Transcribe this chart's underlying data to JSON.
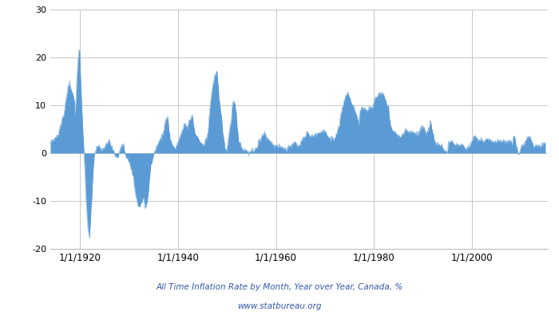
{
  "title_line1": "All Time Inflation Rate by Month, Year over Year, Canada, %",
  "title_line2": "www.statbureau.org",
  "title_color": "#3355aa",
  "fill_color": "#5b9bd5",
  "line_color": "#5b9bd5",
  "background_color": "#ffffff",
  "grid_color": "#c8c8c8",
  "ylim": [
    -20,
    30
  ],
  "yticks": [
    -20,
    -10,
    0,
    10,
    20,
    30
  ],
  "x_start_year": 1914,
  "x_end_year": 2015,
  "xtick_years": [
    1920,
    1940,
    1960,
    1980,
    2000
  ],
  "key_points": [
    [
      1914,
      1,
      2.0
    ],
    [
      1914,
      6,
      2.5
    ],
    [
      1914,
      12,
      3.0
    ],
    [
      1915,
      6,
      3.5
    ],
    [
      1915,
      12,
      5.0
    ],
    [
      1916,
      6,
      7.0
    ],
    [
      1916,
      12,
      9.0
    ],
    [
      1917,
      3,
      11.0
    ],
    [
      1917,
      6,
      13.0
    ],
    [
      1917,
      9,
      14.0
    ],
    [
      1917,
      12,
      15.0
    ],
    [
      1918,
      3,
      13.5
    ],
    [
      1918,
      6,
      13.0
    ],
    [
      1918,
      9,
      12.0
    ],
    [
      1918,
      12,
      11.0
    ],
    [
      1919,
      1,
      8.0
    ],
    [
      1919,
      3,
      10.0
    ],
    [
      1919,
      6,
      16.0
    ],
    [
      1919,
      9,
      20.0
    ],
    [
      1919,
      11,
      21.5
    ],
    [
      1920,
      1,
      21.0
    ],
    [
      1920,
      3,
      16.0
    ],
    [
      1920,
      6,
      10.0
    ],
    [
      1920,
      9,
      4.0
    ],
    [
      1920,
      12,
      -1.0
    ],
    [
      1921,
      3,
      -7.0
    ],
    [
      1921,
      6,
      -12.0
    ],
    [
      1921,
      9,
      -16.0
    ],
    [
      1921,
      12,
      -17.5
    ],
    [
      1922,
      1,
      -17.8
    ],
    [
      1922,
      3,
      -15.0
    ],
    [
      1922,
      6,
      -10.0
    ],
    [
      1922,
      9,
      -5.0
    ],
    [
      1922,
      12,
      -1.0
    ],
    [
      1923,
      3,
      0.0
    ],
    [
      1923,
      6,
      1.0
    ],
    [
      1923,
      12,
      1.5
    ],
    [
      1924,
      6,
      0.5
    ],
    [
      1924,
      12,
      1.0
    ],
    [
      1925,
      6,
      2.0
    ],
    [
      1925,
      12,
      2.5
    ],
    [
      1926,
      6,
      1.5
    ],
    [
      1926,
      12,
      0.5
    ],
    [
      1927,
      6,
      -1.0
    ],
    [
      1927,
      12,
      -0.5
    ],
    [
      1928,
      6,
      1.5
    ],
    [
      1928,
      12,
      2.0
    ],
    [
      1929,
      3,
      0.5
    ],
    [
      1929,
      6,
      -0.5
    ],
    [
      1929,
      12,
      -1.5
    ],
    [
      1930,
      3,
      -2.0
    ],
    [
      1930,
      6,
      -3.5
    ],
    [
      1930,
      12,
      -5.0
    ],
    [
      1931,
      3,
      -7.0
    ],
    [
      1931,
      6,
      -9.0
    ],
    [
      1931,
      12,
      -11.0
    ],
    [
      1932,
      3,
      -11.5
    ],
    [
      1932,
      6,
      -10.5
    ],
    [
      1932,
      9,
      -10.0
    ],
    [
      1932,
      12,
      -9.5
    ],
    [
      1933,
      1,
      -9.0
    ],
    [
      1933,
      3,
      -10.0
    ],
    [
      1933,
      5,
      -11.5
    ],
    [
      1933,
      9,
      -10.5
    ],
    [
      1933,
      12,
      -9.0
    ],
    [
      1934,
      3,
      -6.0
    ],
    [
      1934,
      6,
      -3.0
    ],
    [
      1934,
      12,
      -1.0
    ],
    [
      1935,
      3,
      0.0
    ],
    [
      1935,
      6,
      1.0
    ],
    [
      1935,
      9,
      1.5
    ],
    [
      1935,
      12,
      2.0
    ],
    [
      1936,
      3,
      2.5
    ],
    [
      1936,
      6,
      3.0
    ],
    [
      1936,
      9,
      3.5
    ],
    [
      1936,
      12,
      4.0
    ],
    [
      1937,
      3,
      5.0
    ],
    [
      1937,
      6,
      6.5
    ],
    [
      1937,
      9,
      7.0
    ],
    [
      1937,
      12,
      7.5
    ],
    [
      1938,
      3,
      5.0
    ],
    [
      1938,
      6,
      3.0
    ],
    [
      1938,
      12,
      1.5
    ],
    [
      1939,
      6,
      1.0
    ],
    [
      1939,
      12,
      2.0
    ],
    [
      1940,
      6,
      3.5
    ],
    [
      1940,
      12,
      5.0
    ],
    [
      1941,
      6,
      6.0
    ],
    [
      1941,
      12,
      5.5
    ],
    [
      1942,
      6,
      7.0
    ],
    [
      1942,
      12,
      8.0
    ],
    [
      1943,
      6,
      4.5
    ],
    [
      1943,
      12,
      3.5
    ],
    [
      1944,
      6,
      2.5
    ],
    [
      1944,
      12,
      2.0
    ],
    [
      1945,
      3,
      1.5
    ],
    [
      1945,
      6,
      2.0
    ],
    [
      1945,
      9,
      3.0
    ],
    [
      1945,
      12,
      3.5
    ],
    [
      1946,
      3,
      5.0
    ],
    [
      1946,
      6,
      8.0
    ],
    [
      1946,
      9,
      11.0
    ],
    [
      1946,
      12,
      13.0
    ],
    [
      1947,
      3,
      14.0
    ],
    [
      1947,
      6,
      16.0
    ],
    [
      1947,
      9,
      16.5
    ],
    [
      1947,
      11,
      17.0
    ],
    [
      1948,
      1,
      17.0
    ],
    [
      1948,
      3,
      15.0
    ],
    [
      1948,
      6,
      11.0
    ],
    [
      1948,
      9,
      9.0
    ],
    [
      1948,
      12,
      7.0
    ],
    [
      1949,
      3,
      4.5
    ],
    [
      1949,
      6,
      2.5
    ],
    [
      1949,
      9,
      1.0
    ],
    [
      1949,
      12,
      0.5
    ],
    [
      1950,
      3,
      2.0
    ],
    [
      1950,
      6,
      4.0
    ],
    [
      1950,
      9,
      6.0
    ],
    [
      1950,
      12,
      7.0
    ],
    [
      1951,
      1,
      9.0
    ],
    [
      1951,
      3,
      10.5
    ],
    [
      1951,
      6,
      11.0
    ],
    [
      1951,
      9,
      10.0
    ],
    [
      1951,
      12,
      8.0
    ],
    [
      1952,
      3,
      5.0
    ],
    [
      1952,
      6,
      2.5
    ],
    [
      1952,
      12,
      1.5
    ],
    [
      1953,
      6,
      0.5
    ],
    [
      1953,
      12,
      0.5
    ],
    [
      1954,
      6,
      0.0
    ],
    [
      1954,
      12,
      0.5
    ],
    [
      1955,
      6,
      0.5
    ],
    [
      1955,
      12,
      1.0
    ],
    [
      1956,
      3,
      1.5
    ],
    [
      1956,
      6,
      2.5
    ],
    [
      1956,
      12,
      3.0
    ],
    [
      1957,
      3,
      3.5
    ],
    [
      1957,
      6,
      4.0
    ],
    [
      1957,
      9,
      4.5
    ],
    [
      1957,
      12,
      3.5
    ],
    [
      1958,
      3,
      3.0
    ],
    [
      1958,
      6,
      3.0
    ],
    [
      1958,
      12,
      2.5
    ],
    [
      1959,
      6,
      1.5
    ],
    [
      1959,
      12,
      1.5
    ],
    [
      1960,
      6,
      1.5
    ],
    [
      1960,
      12,
      1.5
    ],
    [
      1961,
      6,
      1.0
    ],
    [
      1961,
      12,
      1.0
    ],
    [
      1962,
      3,
      0.5
    ],
    [
      1962,
      6,
      1.5
    ],
    [
      1962,
      12,
      1.5
    ],
    [
      1963,
      6,
      2.0
    ],
    [
      1963,
      12,
      2.5
    ],
    [
      1964,
      6,
      1.5
    ],
    [
      1964,
      12,
      2.0
    ],
    [
      1965,
      3,
      2.5
    ],
    [
      1965,
      6,
      3.0
    ],
    [
      1965,
      12,
      3.5
    ],
    [
      1966,
      3,
      4.0
    ],
    [
      1966,
      6,
      4.5
    ],
    [
      1966,
      9,
      4.0
    ],
    [
      1966,
      12,
      3.5
    ],
    [
      1967,
      6,
      3.5
    ],
    [
      1967,
      12,
      3.8
    ],
    [
      1968,
      6,
      4.0
    ],
    [
      1968,
      12,
      4.5
    ],
    [
      1969,
      6,
      4.5
    ],
    [
      1969,
      12,
      5.0
    ],
    [
      1970,
      3,
      4.5
    ],
    [
      1970,
      6,
      3.5
    ],
    [
      1970,
      12,
      3.0
    ],
    [
      1971,
      6,
      3.0
    ],
    [
      1971,
      12,
      3.0
    ],
    [
      1972,
      3,
      3.5
    ],
    [
      1972,
      6,
      4.5
    ],
    [
      1972,
      12,
      5.5
    ],
    [
      1973,
      1,
      6.5
    ],
    [
      1973,
      3,
      8.0
    ],
    [
      1973,
      6,
      9.0
    ],
    [
      1973,
      9,
      10.0
    ],
    [
      1973,
      12,
      11.0
    ],
    [
      1974,
      1,
      11.5
    ],
    [
      1974,
      3,
      12.0
    ],
    [
      1974,
      6,
      12.5
    ],
    [
      1974,
      9,
      12.5
    ],
    [
      1974,
      12,
      12.0
    ],
    [
      1975,
      3,
      11.0
    ],
    [
      1975,
      6,
      10.5
    ],
    [
      1975,
      9,
      10.0
    ],
    [
      1975,
      12,
      9.5
    ],
    [
      1976,
      3,
      8.5
    ],
    [
      1976,
      6,
      8.0
    ],
    [
      1976,
      9,
      7.0
    ],
    [
      1976,
      12,
      5.5
    ],
    [
      1977,
      1,
      8.0
    ],
    [
      1977,
      3,
      9.0
    ],
    [
      1977,
      6,
      9.5
    ],
    [
      1977,
      9,
      9.5
    ],
    [
      1977,
      12,
      9.0
    ],
    [
      1978,
      3,
      9.5
    ],
    [
      1978,
      6,
      9.0
    ],
    [
      1978,
      9,
      9.0
    ],
    [
      1978,
      12,
      9.5
    ],
    [
      1979,
      3,
      9.5
    ],
    [
      1979,
      6,
      9.5
    ],
    [
      1979,
      9,
      9.5
    ],
    [
      1979,
      12,
      10.5
    ],
    [
      1980,
      3,
      11.5
    ],
    [
      1980,
      6,
      12.0
    ],
    [
      1980,
      9,
      11.5
    ],
    [
      1980,
      12,
      12.5
    ],
    [
      1981,
      1,
      12.5
    ],
    [
      1981,
      3,
      12.5
    ],
    [
      1981,
      6,
      12.5
    ],
    [
      1981,
      9,
      12.5
    ],
    [
      1981,
      12,
      12.0
    ],
    [
      1982,
      3,
      11.5
    ],
    [
      1982,
      6,
      11.0
    ],
    [
      1982,
      9,
      10.0
    ],
    [
      1982,
      12,
      9.5
    ],
    [
      1983,
      3,
      7.0
    ],
    [
      1983,
      6,
      5.5
    ],
    [
      1983,
      9,
      5.0
    ],
    [
      1983,
      12,
      4.5
    ],
    [
      1984,
      6,
      4.0
    ],
    [
      1984,
      12,
      4.0
    ],
    [
      1985,
      6,
      3.5
    ],
    [
      1985,
      12,
      4.0
    ],
    [
      1986,
      3,
      4.5
    ],
    [
      1986,
      6,
      5.0
    ],
    [
      1986,
      12,
      4.5
    ],
    [
      1987,
      6,
      4.5
    ],
    [
      1987,
      12,
      4.5
    ],
    [
      1988,
      6,
      4.0
    ],
    [
      1988,
      12,
      4.0
    ],
    [
      1989,
      3,
      4.5
    ],
    [
      1989,
      6,
      5.0
    ],
    [
      1989,
      9,
      5.5
    ],
    [
      1989,
      12,
      5.5
    ],
    [
      1990,
      3,
      5.5
    ],
    [
      1990,
      6,
      4.5
    ],
    [
      1990,
      9,
      4.0
    ],
    [
      1990,
      12,
      4.5
    ],
    [
      1991,
      3,
      5.0
    ],
    [
      1991,
      6,
      6.5
    ],
    [
      1991,
      9,
      6.0
    ],
    [
      1991,
      12,
      4.5
    ],
    [
      1992,
      3,
      3.5
    ],
    [
      1992,
      6,
      2.0
    ],
    [
      1992,
      9,
      1.5
    ],
    [
      1992,
      12,
      2.0
    ],
    [
      1993,
      6,
      1.5
    ],
    [
      1993,
      12,
      1.5
    ],
    [
      1994,
      3,
      0.5
    ],
    [
      1994,
      6,
      0.5
    ],
    [
      1994,
      12,
      0.0
    ],
    [
      1995,
      3,
      2.0
    ],
    [
      1995,
      6,
      2.5
    ],
    [
      1995,
      12,
      2.5
    ],
    [
      1996,
      6,
      1.5
    ],
    [
      1996,
      12,
      2.0
    ],
    [
      1997,
      6,
      1.5
    ],
    [
      1997,
      12,
      2.0
    ],
    [
      1998,
      6,
      1.0
    ],
    [
      1998,
      12,
      1.0
    ],
    [
      1999,
      6,
      1.5
    ],
    [
      1999,
      12,
      2.5
    ],
    [
      2000,
      3,
      3.0
    ],
    [
      2000,
      6,
      3.5
    ],
    [
      2000,
      12,
      3.0
    ],
    [
      2001,
      3,
      2.5
    ],
    [
      2001,
      6,
      3.0
    ],
    [
      2001,
      12,
      2.5
    ],
    [
      2002,
      6,
      2.5
    ],
    [
      2002,
      12,
      3.0
    ],
    [
      2003,
      6,
      3.0
    ],
    [
      2003,
      12,
      2.5
    ],
    [
      2004,
      6,
      2.5
    ],
    [
      2004,
      12,
      2.5
    ],
    [
      2005,
      6,
      2.5
    ],
    [
      2005,
      12,
      2.5
    ],
    [
      2006,
      6,
      2.5
    ],
    [
      2006,
      12,
      2.0
    ],
    [
      2007,
      6,
      2.5
    ],
    [
      2007,
      12,
      2.5
    ],
    [
      2008,
      3,
      2.0
    ],
    [
      2008,
      6,
      3.5
    ],
    [
      2008,
      9,
      3.5
    ],
    [
      2008,
      12,
      1.5
    ],
    [
      2009,
      3,
      1.0
    ],
    [
      2009,
      6,
      -0.3
    ],
    [
      2009,
      9,
      0.0
    ],
    [
      2009,
      12,
      1.5
    ],
    [
      2010,
      6,
      1.5
    ],
    [
      2010,
      12,
      2.5
    ],
    [
      2011,
      3,
      3.0
    ],
    [
      2011,
      6,
      3.5
    ],
    [
      2011,
      12,
      3.0
    ],
    [
      2012,
      6,
      1.5
    ],
    [
      2012,
      12,
      1.5
    ],
    [
      2013,
      6,
      1.5
    ],
    [
      2013,
      12,
      1.5
    ],
    [
      2014,
      6,
      2.0
    ],
    [
      2014,
      12,
      2.0
    ]
  ]
}
